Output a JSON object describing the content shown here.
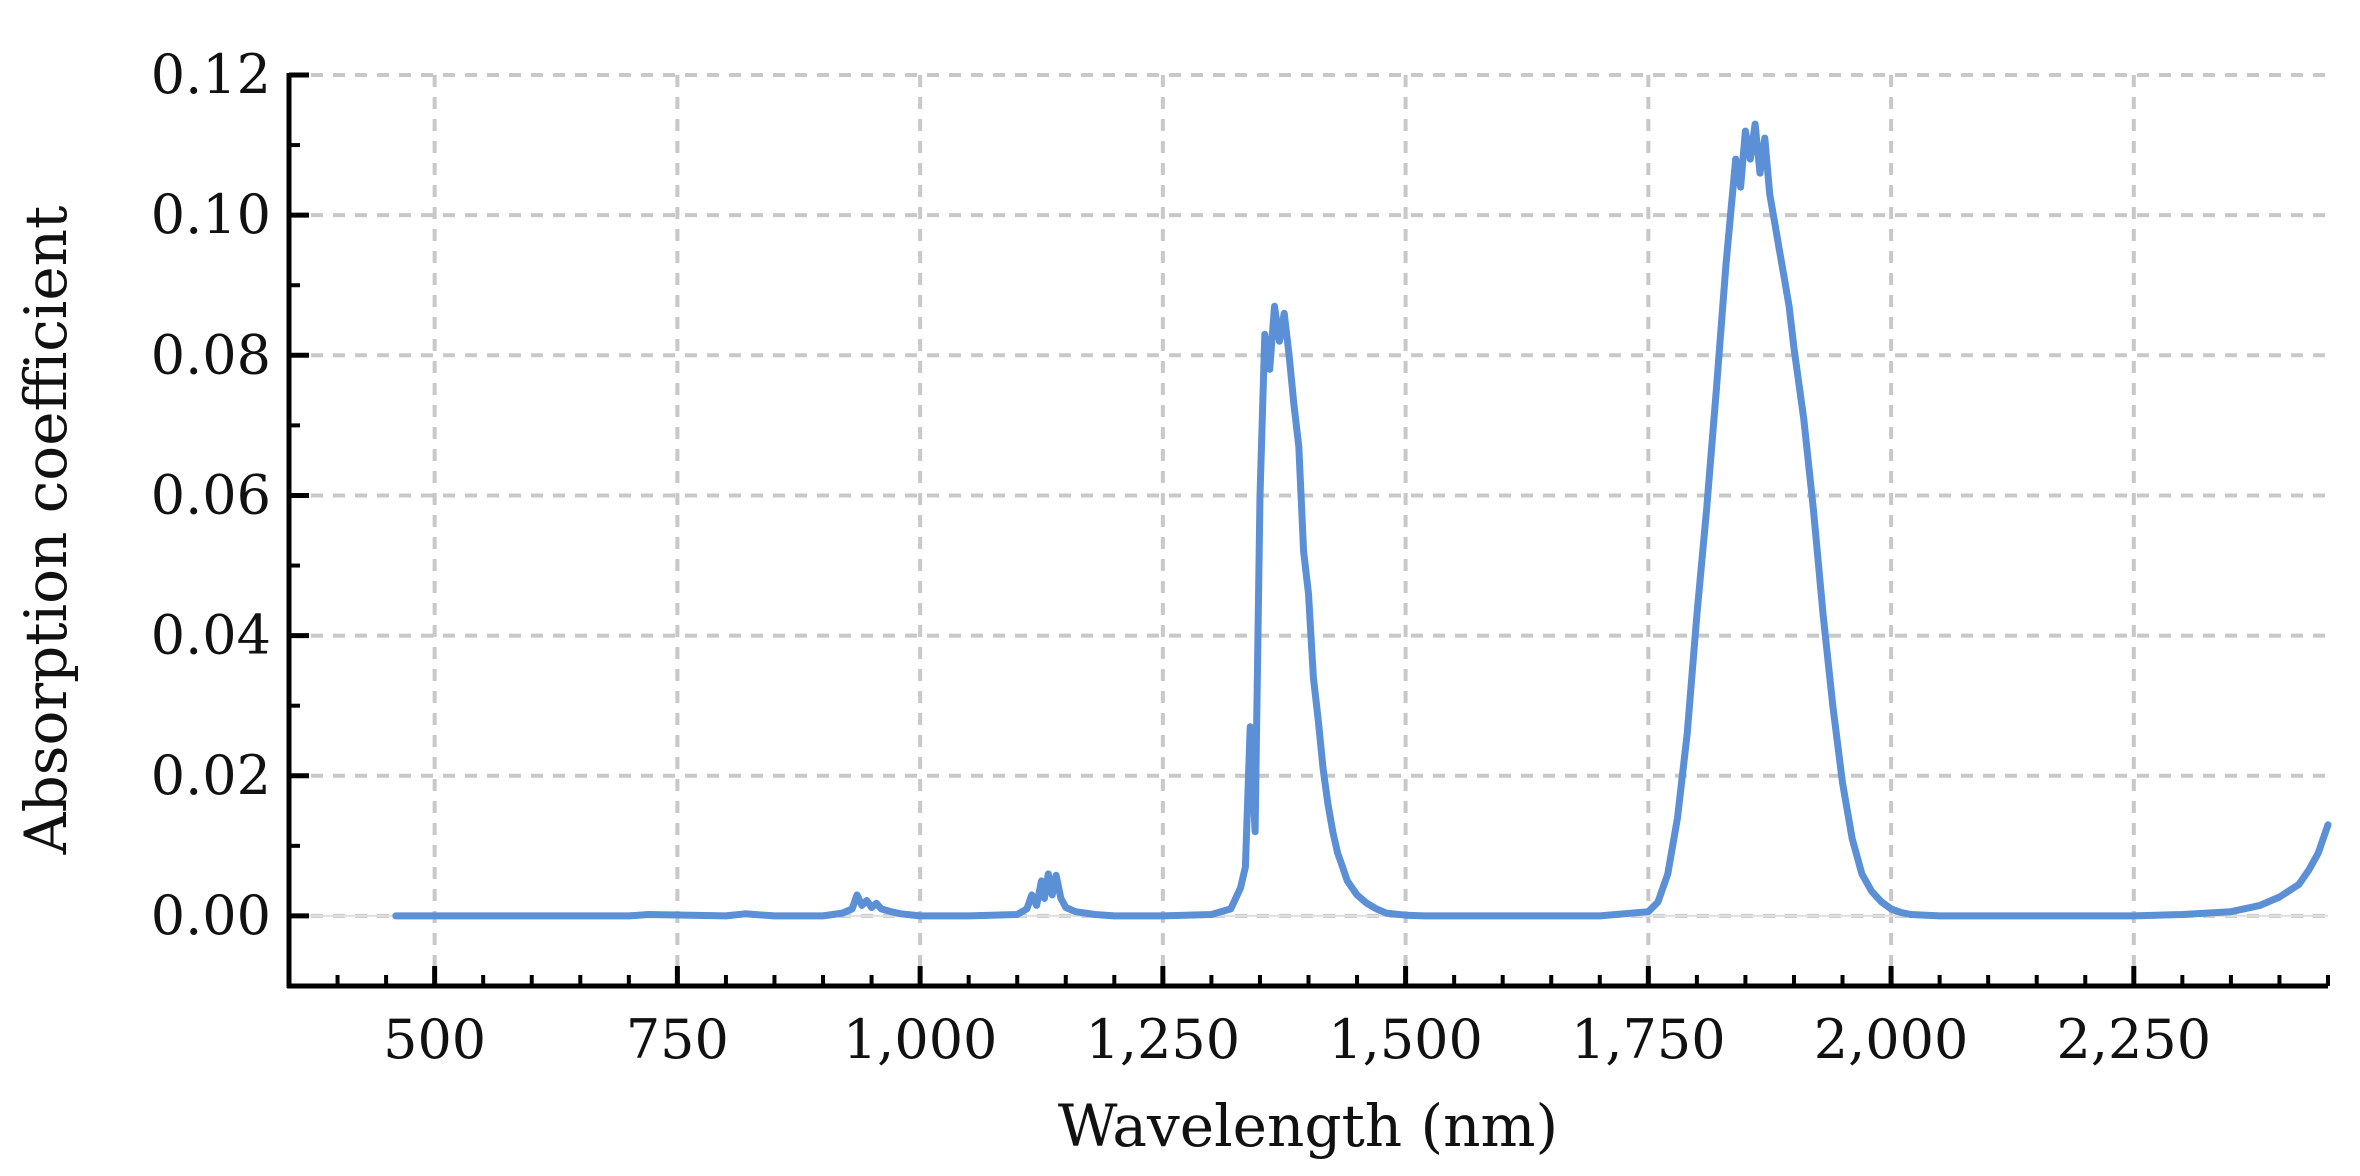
{
  "chart_data": {
    "type": "line",
    "title": "",
    "xlabel": "Wavelength (nm)",
    "ylabel": "Absorption coefficient",
    "xlim": [
      350,
      2450
    ],
    "ylim": [
      -0.01,
      0.12
    ],
    "xticks": [
      500,
      750,
      1000,
      1250,
      1500,
      1750,
      2000,
      2250
    ],
    "xtick_labels": [
      "500",
      "750",
      "1,000",
      "1,250",
      "1,500",
      "1,750",
      "2,000",
      "2,250"
    ],
    "yticks": [
      0,
      0.02,
      0.04,
      0.06,
      0.08,
      0.1,
      0.12
    ],
    "ytick_labels": [
      "0.00",
      "0.02",
      "0.04",
      "0.06",
      "0.08",
      "0.10",
      "0.12"
    ],
    "grid": true,
    "line_color": "#5b8fd6",
    "grid_color": "#c8c8c8",
    "series": [
      {
        "x": [
          460,
          700,
          720,
          800,
          820,
          850,
          900,
          920,
          930,
          935,
          940,
          945,
          950,
          955,
          960,
          970,
          980,
          1000,
          1050,
          1100,
          1110,
          1115,
          1120,
          1125,
          1128,
          1132,
          1136,
          1140,
          1145,
          1150,
          1160,
          1180,
          1200,
          1250,
          1300,
          1320,
          1330,
          1335,
          1340,
          1345,
          1350,
          1355,
          1360,
          1365,
          1370,
          1375,
          1380,
          1385,
          1390,
          1395,
          1400,
          1405,
          1410,
          1415,
          1420,
          1425,
          1430,
          1435,
          1440,
          1450,
          1460,
          1470,
          1480,
          1500,
          1520,
          1550,
          1600,
          1700,
          1750,
          1760,
          1770,
          1780,
          1790,
          1800,
          1810,
          1820,
          1830,
          1840,
          1845,
          1850,
          1855,
          1860,
          1865,
          1870,
          1875,
          1880,
          1885,
          1890,
          1895,
          1900,
          1910,
          1920,
          1930,
          1940,
          1950,
          1960,
          1970,
          1980,
          1990,
          2000,
          2010,
          2020,
          2050,
          2100,
          2200,
          2250,
          2300,
          2350,
          2380,
          2400,
          2420,
          2430,
          2440,
          2450
        ],
        "y": [
          0,
          0,
          0.0002,
          0,
          0.0003,
          0,
          0,
          0.0004,
          0.001,
          0.003,
          0.0015,
          0.0022,
          0.0012,
          0.0018,
          0.001,
          0.0006,
          0.0003,
          0,
          0,
          0.0002,
          0.001,
          0.003,
          0.0015,
          0.005,
          0.0025,
          0.006,
          0.003,
          0.0058,
          0.0025,
          0.0012,
          0.0006,
          0.0002,
          0,
          0,
          0.0002,
          0.001,
          0.004,
          0.007,
          0.027,
          0.012,
          0.06,
          0.083,
          0.078,
          0.087,
          0.082,
          0.086,
          0.08,
          0.073,
          0.067,
          0.052,
          0.046,
          0.034,
          0.028,
          0.021,
          0.016,
          0.012,
          0.009,
          0.007,
          0.005,
          0.003,
          0.0018,
          0.001,
          0.0004,
          0.0001,
          0,
          0,
          0,
          0,
          0.0006,
          0.002,
          0.006,
          0.014,
          0.026,
          0.043,
          0.058,
          0.075,
          0.093,
          0.108,
          0.104,
          0.112,
          0.108,
          0.113,
          0.106,
          0.111,
          0.103,
          0.099,
          0.095,
          0.091,
          0.087,
          0.081,
          0.071,
          0.058,
          0.043,
          0.03,
          0.019,
          0.011,
          0.006,
          0.0035,
          0.002,
          0.001,
          0.0005,
          0.0002,
          0,
          0,
          0,
          0,
          0.0002,
          0.0006,
          0.0015,
          0.0027,
          0.0045,
          0.0065,
          0.009,
          0.013
        ]
      }
    ]
  }
}
